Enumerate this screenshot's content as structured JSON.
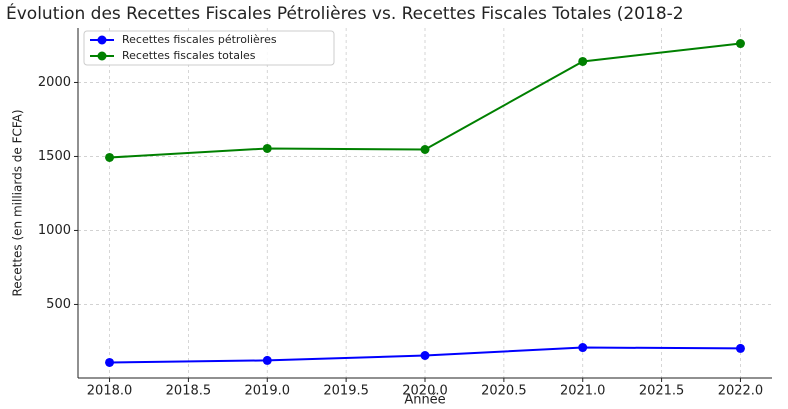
{
  "chart_data": {
    "type": "line",
    "title": "Évolution des Recettes Fiscales Pétrolières vs. Recettes Fiscales Totales (2018-2",
    "x_label": "Année",
    "y_label": "Recettes (en milliards de FCFA)",
    "x": [
      2018,
      2019,
      2020,
      2021,
      2022
    ],
    "series": [
      {
        "name": "Recettes fiscales pétrolières",
        "color": "#0000ff",
        "values": [
          108,
          122,
          155,
          209,
          203
        ]
      },
      {
        "name": "Recettes fiscales totales",
        "color": "#008000",
        "values": [
          1493,
          1554,
          1547,
          2142,
          2263
        ]
      }
    ],
    "xlim": [
      2017.8,
      2022.2
    ],
    "xticks": [
      {
        "value": 2018,
        "label": "2018.0"
      },
      2018.5,
      {
        "value": 2019,
        "label": "2019.0"
      },
      2019.5,
      {
        "value": 2020,
        "label": "2020.0"
      },
      2020.5,
      {
        "value": 2021,
        "label": "2021.0"
      },
      2021.5,
      {
        "value": 2022,
        "label": "2022.0"
      }
    ],
    "ylim": [
      3,
      2368
    ],
    "yticks": [
      500,
      1000,
      1500,
      2000
    ],
    "grid": true,
    "legend": "upper left"
  }
}
